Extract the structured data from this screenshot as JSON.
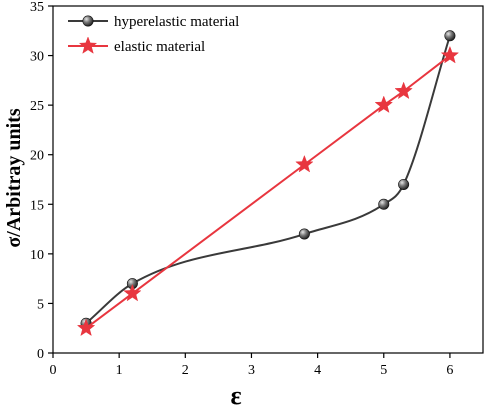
{
  "chart_data": {
    "type": "line",
    "xlabel": "ε",
    "ylabel": "σ/Arbitray units",
    "xlim": [
      0,
      6.5
    ],
    "ylim": [
      0,
      35
    ],
    "xticks": [
      0,
      1,
      2,
      3,
      4,
      5,
      6
    ],
    "yticks": [
      0,
      5,
      10,
      15,
      20,
      25,
      30,
      35
    ],
    "grid": false,
    "legend_position": "top-left",
    "series": [
      {
        "name": "hyperelastic material",
        "marker": "sphere",
        "color": "#3a3a3a",
        "smooth": true,
        "points": [
          [
            0.5,
            3
          ],
          [
            1.2,
            7
          ],
          [
            3.8,
            12
          ],
          [
            5.0,
            15
          ],
          [
            5.3,
            17
          ],
          [
            6.0,
            32
          ]
        ]
      },
      {
        "name": "elastic material",
        "marker": "star",
        "color": "#e8363f",
        "smooth": false,
        "points": [
          [
            0.5,
            2.5
          ],
          [
            1.2,
            6
          ],
          [
            3.8,
            19
          ],
          [
            5.0,
            25
          ],
          [
            5.3,
            26.4
          ],
          [
            6.0,
            30
          ]
        ]
      }
    ]
  }
}
